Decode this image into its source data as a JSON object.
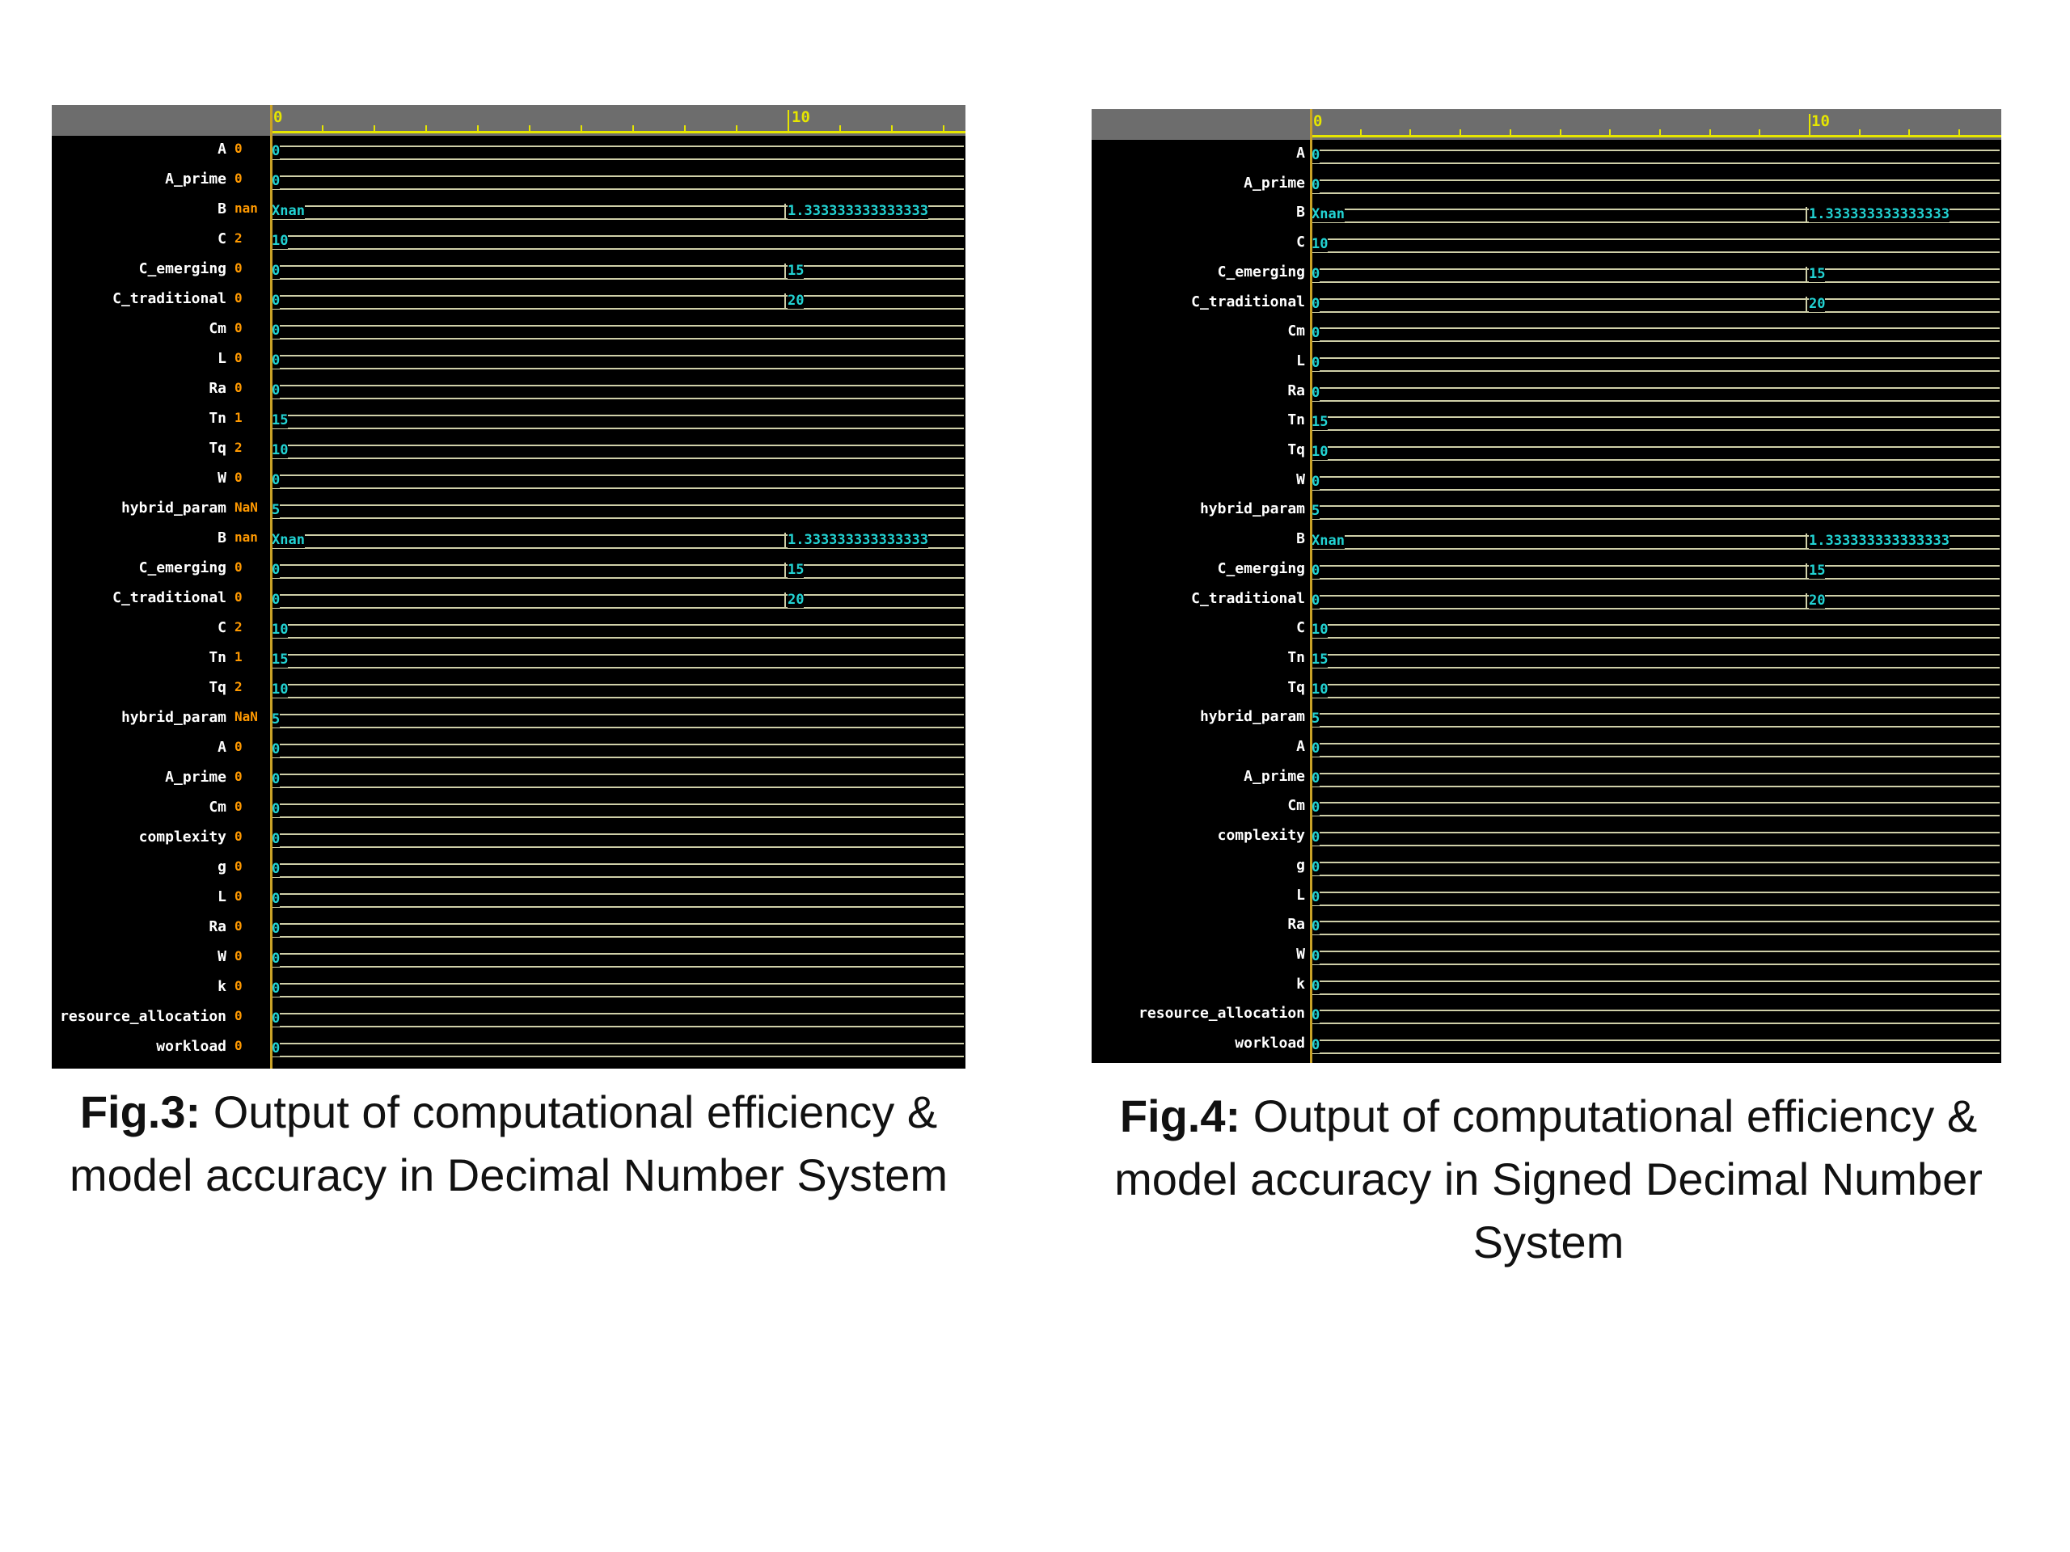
{
  "ruler": {
    "label_0": "0",
    "label_10": "10"
  },
  "figures": [
    {
      "caption_bold": "Fig.3:",
      "caption_text": " Output of computational efficiency & model accuracy in Decimal Number System",
      "rows": [
        {
          "name": "A",
          "value": "0",
          "start": "0",
          "end": ""
        },
        {
          "name": "A_prime",
          "value": "0",
          "start": "0",
          "end": ""
        },
        {
          "name": "B",
          "value": "nan",
          "start": "Xnan",
          "end": "1.333333333333333"
        },
        {
          "name": "C",
          "value": "2",
          "start": "10",
          "end": ""
        },
        {
          "name": "C_emerging",
          "value": "0",
          "start": "0",
          "end": "15"
        },
        {
          "name": "C_traditional",
          "value": "0",
          "start": "0",
          "end": "20"
        },
        {
          "name": "Cm",
          "value": "0",
          "start": "0",
          "end": ""
        },
        {
          "name": "L",
          "value": "0",
          "start": "0",
          "end": ""
        },
        {
          "name": "Ra",
          "value": "0",
          "start": "0",
          "end": ""
        },
        {
          "name": "Tn",
          "value": "1",
          "start": "15",
          "end": ""
        },
        {
          "name": "Tq",
          "value": "2",
          "start": "10",
          "end": ""
        },
        {
          "name": "W",
          "value": "0",
          "start": "0",
          "end": ""
        },
        {
          "name": "hybrid_param",
          "value": "NaN",
          "start": "5",
          "end": ""
        },
        {
          "name": "B",
          "value": "nan",
          "start": "Xnan",
          "end": "1.333333333333333"
        },
        {
          "name": "C_emerging",
          "value": "0",
          "start": "0",
          "end": "15"
        },
        {
          "name": "C_traditional",
          "value": "0",
          "start": "0",
          "end": "20"
        },
        {
          "name": "C",
          "value": "2",
          "start": "10",
          "end": ""
        },
        {
          "name": "Tn",
          "value": "1",
          "start": "15",
          "end": ""
        },
        {
          "name": "Tq",
          "value": "2",
          "start": "10",
          "end": ""
        },
        {
          "name": "hybrid_param",
          "value": "NaN",
          "start": "5",
          "end": ""
        },
        {
          "name": "A",
          "value": "0",
          "start": "0",
          "end": ""
        },
        {
          "name": "A_prime",
          "value": "0",
          "start": "0",
          "end": ""
        },
        {
          "name": "Cm",
          "value": "0",
          "start": "0",
          "end": ""
        },
        {
          "name": "complexity",
          "value": "0",
          "start": "0",
          "end": ""
        },
        {
          "name": "g",
          "value": "0",
          "start": "0",
          "end": ""
        },
        {
          "name": "L",
          "value": "0",
          "start": "0",
          "end": ""
        },
        {
          "name": "Ra",
          "value": "0",
          "start": "0",
          "end": ""
        },
        {
          "name": "W",
          "value": "0",
          "start": "0",
          "end": ""
        },
        {
          "name": "k",
          "value": "0",
          "start": "0",
          "end": ""
        },
        {
          "name": "resource_allocation",
          "value": "0",
          "start": "0",
          "end": ""
        },
        {
          "name": "workload",
          "value": "0",
          "start": "0",
          "end": ""
        }
      ]
    },
    {
      "caption_bold": "Fig.4:",
      "caption_text": " Output of computational efficiency & model accuracy in Signed Decimal Number System",
      "rows": [
        {
          "name": "A",
          "value": "",
          "start": "0",
          "end": ""
        },
        {
          "name": "A_prime",
          "value": "",
          "start": "0",
          "end": ""
        },
        {
          "name": "B",
          "value": "",
          "start": "Xnan",
          "end": "1.333333333333333"
        },
        {
          "name": "C",
          "value": "",
          "start": "10",
          "end": ""
        },
        {
          "name": "C_emerging",
          "value": "",
          "start": "0",
          "end": "15"
        },
        {
          "name": "C_traditional",
          "value": "",
          "start": "0",
          "end": "20"
        },
        {
          "name": "Cm",
          "value": "",
          "start": "0",
          "end": ""
        },
        {
          "name": "L",
          "value": "",
          "start": "0",
          "end": ""
        },
        {
          "name": "Ra",
          "value": "",
          "start": "0",
          "end": ""
        },
        {
          "name": "Tn",
          "value": "",
          "start": "15",
          "end": ""
        },
        {
          "name": "Tq",
          "value": "",
          "start": "10",
          "end": ""
        },
        {
          "name": "W",
          "value": "",
          "start": "0",
          "end": ""
        },
        {
          "name": "hybrid_param",
          "value": "",
          "start": "5",
          "end": ""
        },
        {
          "name": "B",
          "value": "",
          "start": "Xnan",
          "end": "1.333333333333333"
        },
        {
          "name": "C_emerging",
          "value": "",
          "start": "0",
          "end": "15"
        },
        {
          "name": "C_traditional",
          "value": "",
          "start": "0",
          "end": "20"
        },
        {
          "name": "C",
          "value": "",
          "start": "10",
          "end": ""
        },
        {
          "name": "Tn",
          "value": "",
          "start": "15",
          "end": ""
        },
        {
          "name": "Tq",
          "value": "",
          "start": "10",
          "end": ""
        },
        {
          "name": "hybrid_param",
          "value": "",
          "start": "5",
          "end": ""
        },
        {
          "name": "A",
          "value": "",
          "start": "0",
          "end": ""
        },
        {
          "name": "A_prime",
          "value": "",
          "start": "0",
          "end": ""
        },
        {
          "name": "Cm",
          "value": "",
          "start": "0",
          "end": ""
        },
        {
          "name": "complexity",
          "value": "",
          "start": "0",
          "end": ""
        },
        {
          "name": "g",
          "value": "",
          "start": "0",
          "end": ""
        },
        {
          "name": "L",
          "value": "",
          "start": "0",
          "end": ""
        },
        {
          "name": "Ra",
          "value": "",
          "start": "0",
          "end": ""
        },
        {
          "name": "W",
          "value": "",
          "start": "0",
          "end": ""
        },
        {
          "name": "k",
          "value": "",
          "start": "0",
          "end": ""
        },
        {
          "name": "resource_allocation",
          "value": "",
          "start": "0",
          "end": ""
        },
        {
          "name": "workload",
          "value": "",
          "start": "0",
          "end": ""
        }
      ]
    }
  ],
  "colors": {
    "background": "#000000",
    "signal_text": "#22d3d3",
    "value_text": "#ff9900",
    "ruler": "#e6e600",
    "trace": "#cfcfa8"
  }
}
